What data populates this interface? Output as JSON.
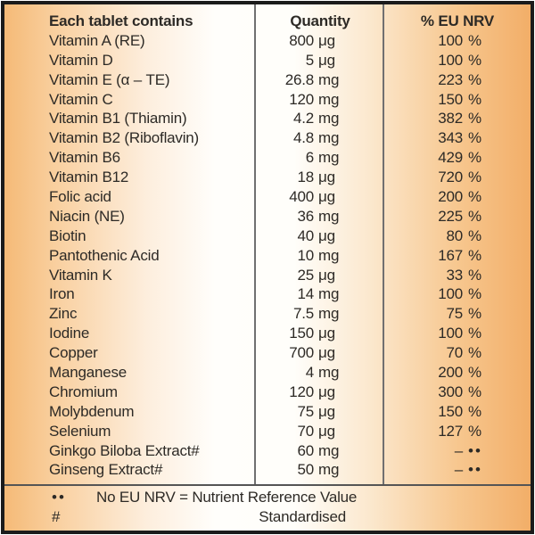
{
  "colors": {
    "label_orange": "#f2ae68",
    "label_cream": "#fffefa",
    "text": "#2d2a26",
    "divider_gray": "#707070",
    "border_black": "#1b1b1b"
  },
  "table": {
    "header": {
      "col1": "Each tablet contains",
      "col2": "Quantity",
      "col3": "% EU NRV"
    },
    "rows": [
      {
        "name": "Vitamin A (RE)",
        "qty": "800",
        "unit": "μg",
        "nrv": "100",
        "nrv_suffix": "%"
      },
      {
        "name": "Vitamin D",
        "qty": "5",
        "unit": "μg",
        "nrv": "100",
        "nrv_suffix": "%"
      },
      {
        "name": "Vitamin E (α – TE)",
        "qty": "26.8",
        "unit": "mg",
        "nrv": "223",
        "nrv_suffix": "%"
      },
      {
        "name": "Vitamin C",
        "qty": "120",
        "unit": "mg",
        "nrv": "150",
        "nrv_suffix": "%"
      },
      {
        "name": "Vitamin B1 (Thiamin)",
        "qty": "4.2",
        "unit": "mg",
        "nrv": "382",
        "nrv_suffix": "%"
      },
      {
        "name": "Vitamin B2 (Riboflavin)",
        "qty": "4.8",
        "unit": "mg",
        "nrv": "343",
        "nrv_suffix": "%"
      },
      {
        "name": "Vitamin B6",
        "qty": "6",
        "unit": "mg",
        "nrv": "429",
        "nrv_suffix": "%"
      },
      {
        "name": "Vitamin B12",
        "qty": "18",
        "unit": "μg",
        "nrv": "720",
        "nrv_suffix": "%"
      },
      {
        "name": "Folic acid",
        "qty": "400",
        "unit": "μg",
        "nrv": "200",
        "nrv_suffix": "%"
      },
      {
        "name": "Niacin (NE)",
        "qty": "36",
        "unit": "mg",
        "nrv": "225",
        "nrv_suffix": "%"
      },
      {
        "name": "Biotin",
        "qty": "40",
        "unit": "μg",
        "nrv": "80",
        "nrv_suffix": "%"
      },
      {
        "name": "Pantothenic Acid",
        "qty": "10",
        "unit": "mg",
        "nrv": "167",
        "nrv_suffix": "%"
      },
      {
        "name": "Vitamin K",
        "qty": "25",
        "unit": "μg",
        "nrv": "33",
        "nrv_suffix": "%"
      },
      {
        "name": "Iron",
        "qty": "14",
        "unit": "mg",
        "nrv": "100",
        "nrv_suffix": "%"
      },
      {
        "name": "Zinc",
        "qty": "7.5",
        "unit": "mg",
        "nrv": "75",
        "nrv_suffix": "%"
      },
      {
        "name": "Iodine",
        "qty": "150",
        "unit": "μg",
        "nrv": "100",
        "nrv_suffix": "%"
      },
      {
        "name": "Copper",
        "qty": "700",
        "unit": "μg",
        "nrv": "70",
        "nrv_suffix": "%"
      },
      {
        "name": "Manganese",
        "qty": "4",
        "unit": "mg",
        "nrv": "200",
        "nrv_suffix": "%"
      },
      {
        "name": "Chromium",
        "qty": "120",
        "unit": "μg",
        "nrv": "300",
        "nrv_suffix": "%"
      },
      {
        "name": "Molybdenum",
        "qty": "75",
        "unit": "μg",
        "nrv": "150",
        "nrv_suffix": "%"
      },
      {
        "name": "Selenium",
        "qty": "70",
        "unit": "μg",
        "nrv": "127",
        "nrv_suffix": "%"
      },
      {
        "name": "Ginkgo Biloba Extract#",
        "qty": "60",
        "unit": "mg",
        "nrv": "–",
        "nrv_suffix": "••"
      },
      {
        "name": "Ginseng Extract#",
        "qty": "50",
        "unit": "mg",
        "nrv": "–",
        "nrv_suffix": "••"
      }
    ]
  },
  "footnotes": [
    {
      "marker": "••",
      "text": "No EU NRV = Nutrient Reference Value"
    },
    {
      "marker": "#",
      "text": "Standardised"
    }
  ]
}
